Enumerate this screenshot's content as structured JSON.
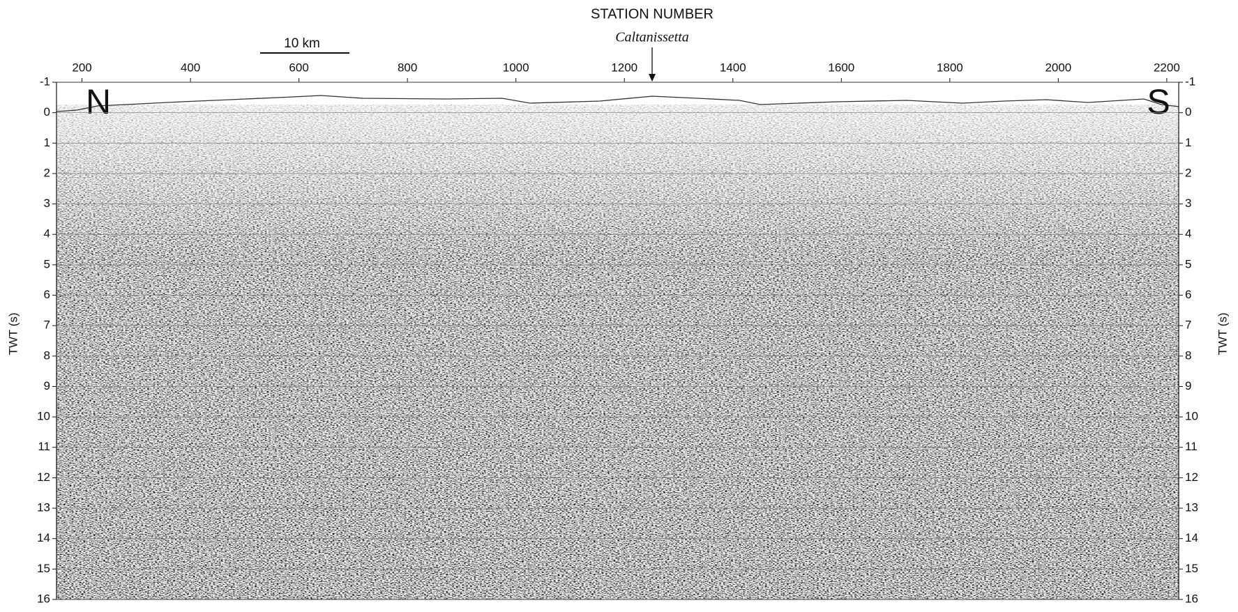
{
  "chart_data": {
    "type": "seismic-section",
    "title": "STATION NUMBER",
    "annotation": "Caltanissetta",
    "scale_bar": "10 km",
    "direction_labels": [
      "N",
      "S"
    ],
    "ylabel": "TWT (s)",
    "xlim": [
      153,
      2222
    ],
    "xticks": [
      200,
      400,
      600,
      800,
      1000,
      1200,
      1400,
      1600,
      1800,
      2000,
      2200
    ],
    "ylim": [
      -1,
      16
    ],
    "y_reversed": true,
    "yticks": [
      -1,
      0,
      1,
      2,
      3,
      4,
      5,
      6,
      7,
      8,
      9,
      10,
      11,
      12,
      13,
      14,
      15,
      16
    ],
    "grid": true
  }
}
